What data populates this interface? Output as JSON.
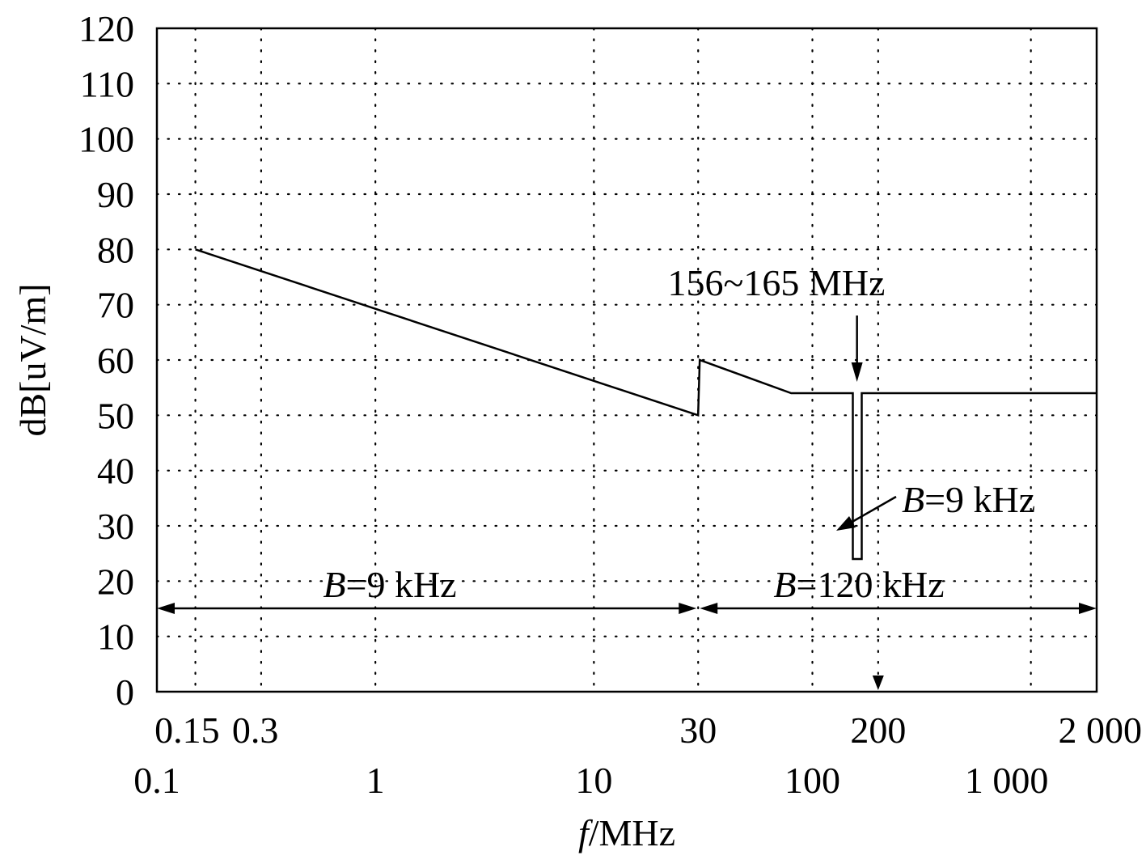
{
  "chart_data": {
    "type": "line",
    "xscale": "log",
    "xlim": [
      0.1,
      2000
    ],
    "ylim": [
      0,
      120
    ],
    "grid": true,
    "ylabel": "dB[uV/m]",
    "xlabel_italic": "f",
    "xlabel_rest": "/MHz",
    "y_ticks": [
      0,
      10,
      20,
      30,
      40,
      50,
      60,
      70,
      80,
      90,
      100,
      110,
      120
    ],
    "x_ticks_upper": [
      {
        "value": 0.15,
        "label": "0.15"
      },
      {
        "value": 0.3,
        "label": "0.3"
      },
      {
        "value": 30,
        "label": "30"
      },
      {
        "value": 200,
        "label": "200"
      },
      {
        "value": 2000,
        "label": "2 000"
      }
    ],
    "x_ticks_lower": [
      {
        "value": 0.1,
        "label": "0.1"
      },
      {
        "value": 1,
        "label": "1"
      },
      {
        "value": 10,
        "label": "10"
      },
      {
        "value": 100,
        "label": "100"
      },
      {
        "value": 1000,
        "label": "1 000"
      }
    ],
    "series": [
      {
        "x": [
          0.15,
          30,
          30,
          80,
          156,
          156,
          165,
          165,
          2000
        ],
        "y": [
          80,
          50,
          60,
          54,
          54,
          24,
          24,
          54,
          54
        ]
      }
    ],
    "annotations": {
      "band_label": "156~165 MHz",
      "band_arrow_value": 160,
      "notch_bw_var": "B",
      "notch_bw_value": "=9 kHz",
      "marker_value": 200
    },
    "ranges": [
      {
        "from": 0.1,
        "to": 30,
        "var": "B",
        "value": "=9 kHz"
      },
      {
        "from": 30,
        "to": 2000,
        "var": "B",
        "value": "=120 kHz"
      }
    ]
  }
}
